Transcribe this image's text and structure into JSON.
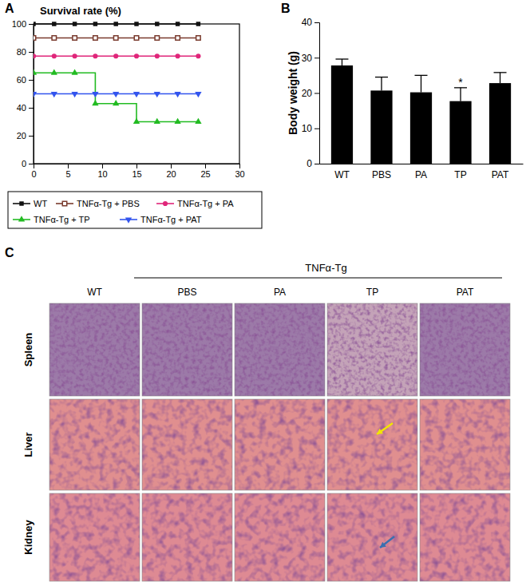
{
  "chart_data": [
    {
      "type": "line",
      "panel": "A",
      "title": "Survival rate (%)",
      "x": [
        0,
        3,
        6,
        9,
        12,
        15,
        18,
        21,
        24
      ],
      "xlim": [
        0,
        30
      ],
      "xticks": [
        0,
        5,
        10,
        15,
        20,
        25,
        30
      ],
      "ylim": [
        0,
        100
      ],
      "yticks": [
        0,
        20,
        40,
        60,
        80,
        100
      ],
      "legend": "bottom",
      "series": [
        {
          "name": "WT",
          "color": "#111111",
          "marker": "square",
          "values": [
            100,
            100,
            100,
            100,
            100,
            100,
            100,
            100,
            100
          ]
        },
        {
          "name": "TNFα-Tg + PBS",
          "color": "#7a3b2e",
          "marker": "square-open",
          "values": [
            90,
            90,
            90,
            90,
            90,
            90,
            90,
            90,
            90
          ]
        },
        {
          "name": "TNFα-Tg + PA",
          "color": "#e0267a",
          "marker": "circle",
          "values": [
            77,
            77,
            77,
            77,
            77,
            77,
            77,
            77,
            77
          ]
        },
        {
          "name": "TNFα-Tg + TP",
          "color": "#22bb22",
          "marker": "triangle",
          "values": [
            65,
            65,
            65,
            43,
            43,
            30,
            30,
            30,
            30
          ]
        },
        {
          "name": "TNFα-Tg + PAT",
          "color": "#3355ee",
          "marker": "triangle-down",
          "values": [
            50,
            50,
            50,
            50,
            50,
            50,
            50,
            50,
            50
          ]
        }
      ]
    },
    {
      "type": "bar",
      "panel": "B",
      "y_label": "Body weight (g)",
      "categories": [
        "WT",
        "PBS",
        "PA",
        "TP",
        "PAT"
      ],
      "values": [
        27.8,
        20.7,
        20.2,
        17.7,
        22.8
      ],
      "errors": [
        1.8,
        3.8,
        4.8,
        3.8,
        3.0
      ],
      "color": "#000000",
      "ylim": [
        0,
        40
      ],
      "yticks": [
        0,
        10,
        20,
        30,
        40
      ],
      "annotations": [
        {
          "text": "*",
          "category": "TP"
        }
      ]
    }
  ],
  "panel_c": {
    "panel": "C",
    "group_label": "TNFα-Tg",
    "columns": [
      "WT",
      "PBS",
      "PA",
      "TP",
      "PAT"
    ],
    "rows": [
      "Spleen",
      "Liver",
      "Kidney"
    ]
  }
}
